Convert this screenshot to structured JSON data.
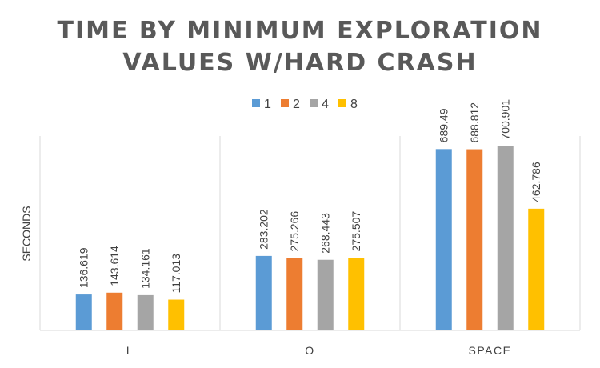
{
  "chart_data": {
    "type": "bar",
    "title_lines": [
      "TIME BY MINIMUM EXPLORATION",
      "VALUES W/HARD CRASH"
    ],
    "xlabel": "",
    "ylabel": "SECONDS",
    "categories": [
      "L",
      "O",
      "SPACE"
    ],
    "series": [
      {
        "name": "1",
        "color": "#5B9BD5",
        "values": [
          136.619,
          283.202,
          689.49
        ]
      },
      {
        "name": "2",
        "color": "#ED7D31",
        "values": [
          143.614,
          275.266,
          688.812
        ]
      },
      {
        "name": "4",
        "color": "#A5A5A5",
        "values": [
          134.161,
          268.443,
          700.901
        ]
      },
      {
        "name": "8",
        "color": "#FFC000",
        "values": [
          117.013,
          275.507,
          462.786
        ]
      }
    ],
    "value_labels": [
      [
        "136.619",
        "283.202",
        "689.49"
      ],
      [
        "143.614",
        "275.266",
        "688.812"
      ],
      [
        "134.161",
        "268.443",
        "700.901"
      ],
      [
        "117.013",
        "275.507",
        "462.786"
      ]
    ],
    "ylim": [
      0,
      800
    ],
    "legend_position": "top",
    "gridlines": false,
    "category_separators": true
  }
}
